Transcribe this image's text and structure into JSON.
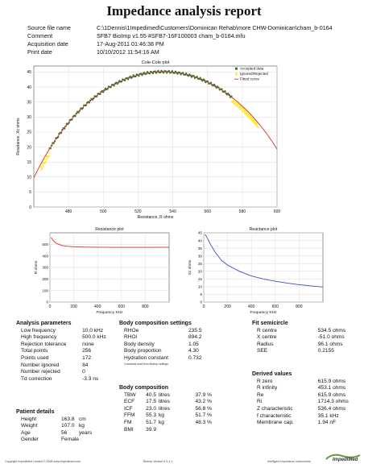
{
  "title": "Impedance analysis report",
  "meta": [
    {
      "key": "Source file name",
      "value": "C:\\1Dennis\\1Impedimed\\Customers\\Dominican Rehab\\more CHW-Dominican\\cham_b-0164"
    },
    {
      "key": "Comment",
      "value": "SFB7 BioImp v1.55 #SFB7-16F100003 cham_b-0164.mfu"
    },
    {
      "key": "Acquisition date",
      "value": "17-Aug-2011 01:46:38 PM"
    },
    {
      "key": "Print date",
      "value": "10/10/2012 11:54:16 AM"
    }
  ],
  "chart_data": [
    {
      "type": "scatter",
      "title": "Cole-Cole plot",
      "xlabel": "Resistance, R ohms",
      "ylabel": "Reactance, Xc ohms",
      "xlim": [
        460,
        600
      ],
      "ylim": [
        0,
        47
      ],
      "xticks": [
        480,
        500,
        520,
        540,
        560,
        580,
        600
      ],
      "yticks": [
        0,
        5,
        10,
        15,
        20,
        25,
        30,
        35,
        40,
        45
      ],
      "legend": [
        "Accepted data",
        "Ignored/Rejected",
        "Fitted curve"
      ],
      "legend_position": "top-right",
      "grid": true,
      "fit": {
        "r_centre": 534.5,
        "x_centre": -51.0,
        "radius": 96.1
      },
      "series": [
        {
          "name": "Accepted data",
          "color": "#2e7d32",
          "x_range": [
            469,
            574
          ]
        },
        {
          "name": "Ignored/Rejected",
          "color": "#ffeb3b",
          "x_ranges": [
            [
              464,
              469
            ],
            [
              574,
              589
            ]
          ]
        },
        {
          "name": "Fitted curve",
          "color": "#d32f2f"
        }
      ]
    },
    {
      "type": "line",
      "title": "Resistance plot",
      "xlabel": "Frequency KHz",
      "ylabel": "R ohms",
      "xlim": [
        0,
        1000
      ],
      "ylim": [
        0,
        600
      ],
      "xticks": [
        0,
        200,
        400,
        600,
        800
      ],
      "yticks": [
        0,
        100,
        200,
        300,
        400,
        500
      ],
      "grid": true,
      "series": [
        {
          "color": "#d32f2f",
          "x": [
            10,
            25,
            50,
            100,
            150,
            200,
            300,
            400,
            500,
            600,
            700,
            800,
            900,
            1000
          ],
          "y": [
            560,
            535,
            510,
            490,
            483,
            479,
            476,
            475,
            474,
            474,
            474,
            474,
            474,
            475
          ]
        }
      ]
    },
    {
      "type": "line",
      "title": "Reactance plot",
      "xlabel": "Frequency KHz",
      "ylabel": "Xc ohms",
      "xlim": [
        0,
        1000
      ],
      "ylim": [
        0,
        45
      ],
      "xticks": [
        0,
        200,
        400,
        600,
        800
      ],
      "yticks": [
        0,
        5,
        10,
        15,
        20,
        25,
        30,
        35,
        40,
        45
      ],
      "grid": true,
      "series": [
        {
          "color": "#3f51b5",
          "x": [
            10,
            20,
            40,
            60,
            100,
            150,
            200,
            300,
            400,
            500,
            600,
            700,
            800,
            900,
            1000
          ],
          "y": [
            44,
            43,
            40,
            37,
            32,
            27,
            24,
            20,
            17,
            15,
            13.5,
            12.3,
            11.3,
            10.5,
            9.8
          ]
        }
      ]
    }
  ],
  "analysis": {
    "heading": "Analysis parameters",
    "rows": [
      [
        "Low frequency",
        "10.0 kHz"
      ],
      [
        "High frequency",
        "500.0 kHz"
      ],
      [
        "Rejection tolerance",
        "none"
      ],
      [
        "Total points",
        "256"
      ],
      [
        "Points used",
        "172"
      ],
      [
        "Number ignored",
        "84"
      ],
      [
        "Number rejected",
        "0"
      ],
      [
        "Td correction",
        "-3.3   ns"
      ]
    ]
  },
  "patient": {
    "heading": "Patient details",
    "rows": [
      [
        "Height",
        "163.8",
        "cm"
      ],
      [
        "Weight",
        "107.0",
        "kg"
      ],
      [
        "Age",
        "56",
        "years"
      ],
      [
        "Gender",
        "Female",
        ""
      ]
    ]
  },
  "bcs": {
    "heading": "Body composition settings",
    "rows": [
      [
        "RHOe",
        "235.5"
      ],
      [
        "RHOi",
        "894.2"
      ],
      [
        "Body density",
        "1.05"
      ],
      [
        "Body proportion",
        "4.30"
      ],
      [
        "Hydration constant",
        "0.732"
      ]
    ],
    "note": "Constants read from BioImp settings."
  },
  "bc": {
    "heading": "Body composition",
    "rows": [
      [
        "TBW",
        "40.5",
        "litres",
        "37.9 %"
      ],
      [
        "ECF",
        "17.5",
        "litres",
        "43.2 %"
      ],
      [
        "ICF",
        "23.0",
        "litres",
        "56.8 %"
      ],
      [
        "FFM",
        "55.3",
        "kg",
        "51.7 %"
      ],
      [
        "FM",
        "51.7",
        "kg",
        "48.3 %"
      ],
      [
        "BMI",
        "39.9",
        "",
        ""
      ]
    ]
  },
  "fit": {
    "heading": "Fit semicircle",
    "rows": [
      [
        "R centre",
        "534.5 ohms"
      ],
      [
        "X centre",
        "-51.0 ohms"
      ],
      [
        "Radius",
        "96.1 ohms"
      ],
      [
        "SEE",
        "0.2155"
      ]
    ]
  },
  "derived": {
    "heading": "Derived values",
    "rows": [
      [
        "R zero",
        "615.9 ohms"
      ],
      [
        "R infinity",
        "453.1 ohms"
      ],
      [
        "Re",
        "615.9 ohms"
      ],
      [
        "Ri",
        "1714.3 ohms"
      ],
      [
        "Z characteristic",
        "536.4 ohms"
      ],
      [
        "f characteristic",
        "35.1 kHz"
      ],
      [
        "Membrane cap.",
        "1.94 nF"
      ]
    ]
  },
  "footer": {
    "copyright": "Copyright ImpediMed Limited © 2008   www.impedimed.com",
    "version": "BioImp Version 5.3.1.1",
    "tagline": "Intelligent Impedance Instruments",
    "logo": "ImpediMed"
  }
}
